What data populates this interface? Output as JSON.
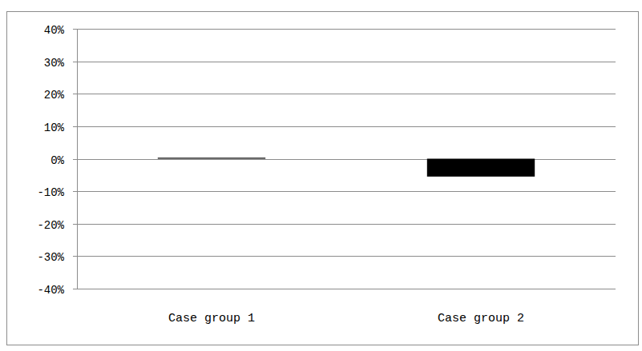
{
  "chart_data": {
    "type": "bar",
    "categories": [
      "Case group 1",
      "Case group 2"
    ],
    "values": [
      0.3,
      -5.5
    ],
    "color": "#000000",
    "ylim": [
      -40,
      40
    ],
    "yticks": [
      {
        "value": -40,
        "label": "-40%"
      },
      {
        "value": -30,
        "label": "-30%"
      },
      {
        "value": -20,
        "label": "-20%"
      },
      {
        "value": -10,
        "label": "-10%"
      },
      {
        "value": 0,
        "label": "0%"
      },
      {
        "value": 10,
        "label": "10%"
      },
      {
        "value": 20,
        "label": "20%"
      },
      {
        "value": 30,
        "label": "30%"
      },
      {
        "value": 40,
        "label": "40%"
      }
    ],
    "grid": true
  }
}
